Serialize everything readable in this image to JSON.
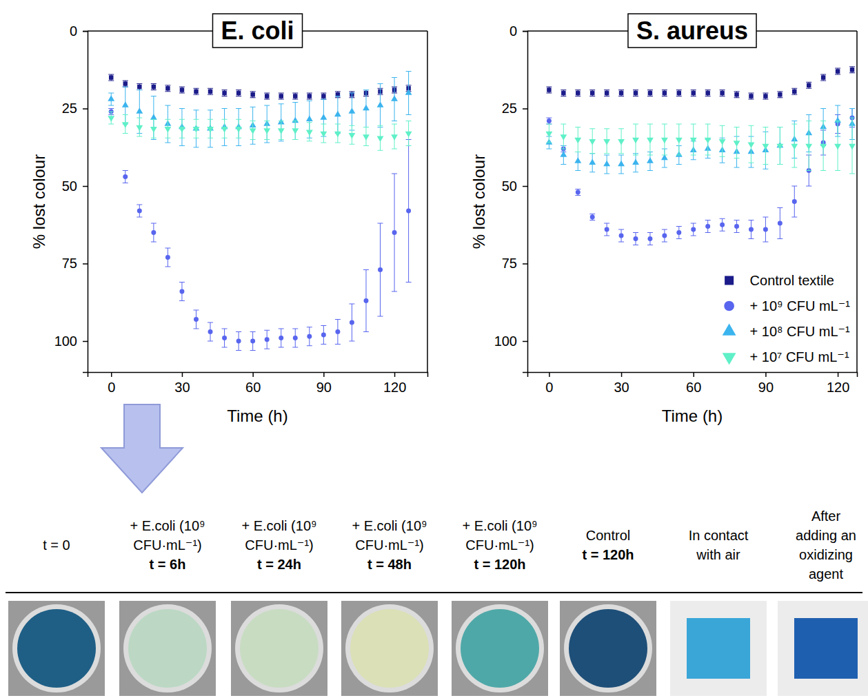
{
  "chart_data": [
    {
      "type": "scatter",
      "title": "E. coli",
      "xlabel": "Time (h)",
      "ylabel": "% lost colour",
      "xlim": [
        -10,
        134
      ],
      "xticks": [
        0,
        30,
        60,
        90,
        120
      ],
      "ylim": [
        0,
        110
      ],
      "yticks": [
        0,
        25,
        50,
        75,
        100
      ],
      "x": [
        0,
        6,
        12,
        18,
        24,
        30,
        36,
        42,
        48,
        54,
        60,
        66,
        72,
        78,
        84,
        90,
        96,
        102,
        108,
        114,
        120,
        126
      ],
      "series": [
        {
          "color": "#1b1b8a",
          "marker": "square",
          "values": [
            15,
            17,
            18,
            18,
            18.5,
            19,
            19.5,
            19.5,
            20,
            20,
            20.5,
            21,
            21,
            21,
            21,
            21,
            20.5,
            20.5,
            20,
            19.5,
            19,
            18.5
          ],
          "errors": [
            1,
            1,
            1,
            1,
            1,
            1,
            1,
            1,
            1,
            1,
            1,
            1,
            1,
            1,
            1,
            1,
            1,
            1,
            1,
            1,
            1,
            1
          ]
        },
        {
          "color": "#5865ee",
          "marker": "circle",
          "values": [
            26,
            47,
            58,
            65,
            73,
            84,
            93,
            97,
            99,
            100,
            100,
            99.5,
            99,
            99,
            98.5,
            98,
            97,
            94,
            87,
            77,
            65,
            58
          ],
          "errors": [
            1,
            2,
            2,
            3,
            3,
            3,
            3,
            3,
            3,
            3,
            3,
            3,
            3,
            3,
            3,
            3,
            4,
            6,
            10,
            15,
            19,
            23
          ]
        },
        {
          "color": "#3bb4ee",
          "marker": "triangle-up",
          "values": [
            22,
            24,
            26,
            28,
            30,
            31,
            31.5,
            31.5,
            31,
            31,
            30.5,
            30,
            29.5,
            29,
            28.5,
            28,
            27,
            26,
            25,
            24,
            22,
            20
          ],
          "errors": [
            2,
            6,
            7,
            7,
            6,
            6,
            6,
            6,
            6,
            6,
            6,
            6,
            6,
            6,
            6,
            6,
            6,
            6,
            6,
            7,
            7,
            7
          ]
        },
        {
          "color": "#5ff0c8",
          "marker": "triangle-down",
          "values": [
            28,
            30,
            31,
            31.5,
            31.5,
            31.5,
            31.5,
            31.5,
            31.5,
            31.5,
            32,
            32,
            32,
            32,
            32.5,
            33,
            33,
            33.5,
            34,
            34.5,
            34,
            33
          ],
          "errors": [
            2,
            3,
            3,
            3,
            3,
            3,
            3,
            3,
            3,
            3,
            3,
            3,
            3,
            3,
            3,
            3,
            3,
            3,
            3,
            4,
            4,
            4
          ]
        }
      ]
    },
    {
      "type": "scatter",
      "title": "S. aureus",
      "xlabel": "Time (h)",
      "ylabel": "% lost colour",
      "xlim": [
        -9,
        128
      ],
      "xticks": [
        0,
        30,
        60,
        90,
        120
      ],
      "ylim": [
        0,
        110
      ],
      "yticks": [
        0,
        25,
        50,
        75,
        100
      ],
      "legend": "lower right",
      "x": [
        0,
        6,
        12,
        18,
        24,
        30,
        36,
        42,
        48,
        54,
        60,
        66,
        72,
        78,
        84,
        90,
        96,
        102,
        108,
        114,
        120,
        126
      ],
      "series": [
        {
          "name": "Control textile",
          "color": "#1b1b8a",
          "marker": "square",
          "values": [
            19,
            20,
            20,
            20,
            20,
            20,
            20,
            20,
            20,
            20,
            20,
            20,
            20,
            20.5,
            21,
            21,
            20.5,
            19.5,
            17.5,
            15,
            13,
            12.5
          ],
          "errors": [
            1,
            1,
            1,
            1,
            1,
            1,
            1,
            1,
            1,
            1,
            1,
            1,
            1,
            1,
            1,
            1,
            1,
            1,
            1,
            1,
            1,
            1
          ]
        },
        {
          "name": "+ 10⁹ CFU mL⁻¹",
          "color": "#5865ee",
          "marker": "circle",
          "values": [
            29,
            38,
            52,
            60,
            64,
            66,
            67,
            67,
            66,
            65,
            64,
            63,
            62.5,
            63,
            64,
            64,
            62,
            55,
            45,
            36,
            30,
            28
          ],
          "errors": [
            1,
            1,
            1,
            1,
            2,
            2,
            2,
            2,
            2,
            2,
            2,
            2,
            2,
            2,
            3,
            4,
            5,
            5,
            5,
            4,
            3,
            3
          ]
        },
        {
          "name": "+ 10⁸ CFU mL⁻¹",
          "color": "#3bb4ee",
          "marker": "triangle-up",
          "values": [
            36,
            40,
            42,
            42.5,
            43,
            43,
            42.5,
            42,
            41,
            40,
            38.5,
            38,
            38.5,
            39,
            39,
            38.5,
            37,
            35,
            33,
            31,
            29,
            30
          ],
          "errors": [
            2,
            3,
            3,
            3,
            3,
            3,
            3,
            3,
            3,
            3,
            3,
            3,
            4,
            5,
            5,
            6,
            6,
            6,
            6,
            6,
            5,
            5
          ]
        },
        {
          "name": "+ 10⁷ CFU mL⁻¹",
          "color": "#5ff0c8",
          "marker": "triangle-down",
          "values": [
            33,
            34,
            35,
            35.5,
            35.5,
            35.5,
            35,
            35,
            35,
            35,
            35,
            35,
            35.5,
            36,
            36.5,
            37,
            37,
            37,
            37,
            37,
            37,
            37
          ],
          "errors": [
            3,
            4,
            4,
            4,
            4,
            4,
            5,
            5,
            5,
            5,
            5,
            5,
            5,
            5,
            6,
            6,
            6,
            7,
            8,
            8,
            8,
            9
          ]
        }
      ]
    }
  ],
  "photo_strip": {
    "panels": [
      {
        "lines": [
          "t = 0"
        ],
        "bold": null,
        "color": "#1f5f86"
      },
      {
        "lines": [
          "+ E.coli (10⁹",
          "CFU·mL⁻¹)"
        ],
        "bold": "t = 6h",
        "color": "#bcd8c4"
      },
      {
        "lines": [
          "+ E.coli (10⁹",
          "CFU·mL⁻¹)"
        ],
        "bold": "t = 24h",
        "color": "#c8dcc2"
      },
      {
        "lines": [
          "+ E.coli (10⁹",
          "CFU·mL⁻¹)"
        ],
        "bold": "t = 48h",
        "color": "#dbe0b6"
      },
      {
        "lines": [
          "+ E.coli (10⁹",
          "CFU·mL⁻¹)"
        ],
        "bold": "t = 120h",
        "color": "#4fa8a8"
      },
      {
        "lines": [
          "Control"
        ],
        "bold": "t = 120h",
        "color": "#1e4f78"
      },
      {
        "lines": [
          "In contact",
          "with air"
        ],
        "bold": null,
        "color": "#3aa6d8"
      },
      {
        "lines": [
          "After",
          "adding an",
          "oxidizing",
          "agent"
        ],
        "bold": null,
        "color": "#1f5fb0"
      }
    ]
  }
}
